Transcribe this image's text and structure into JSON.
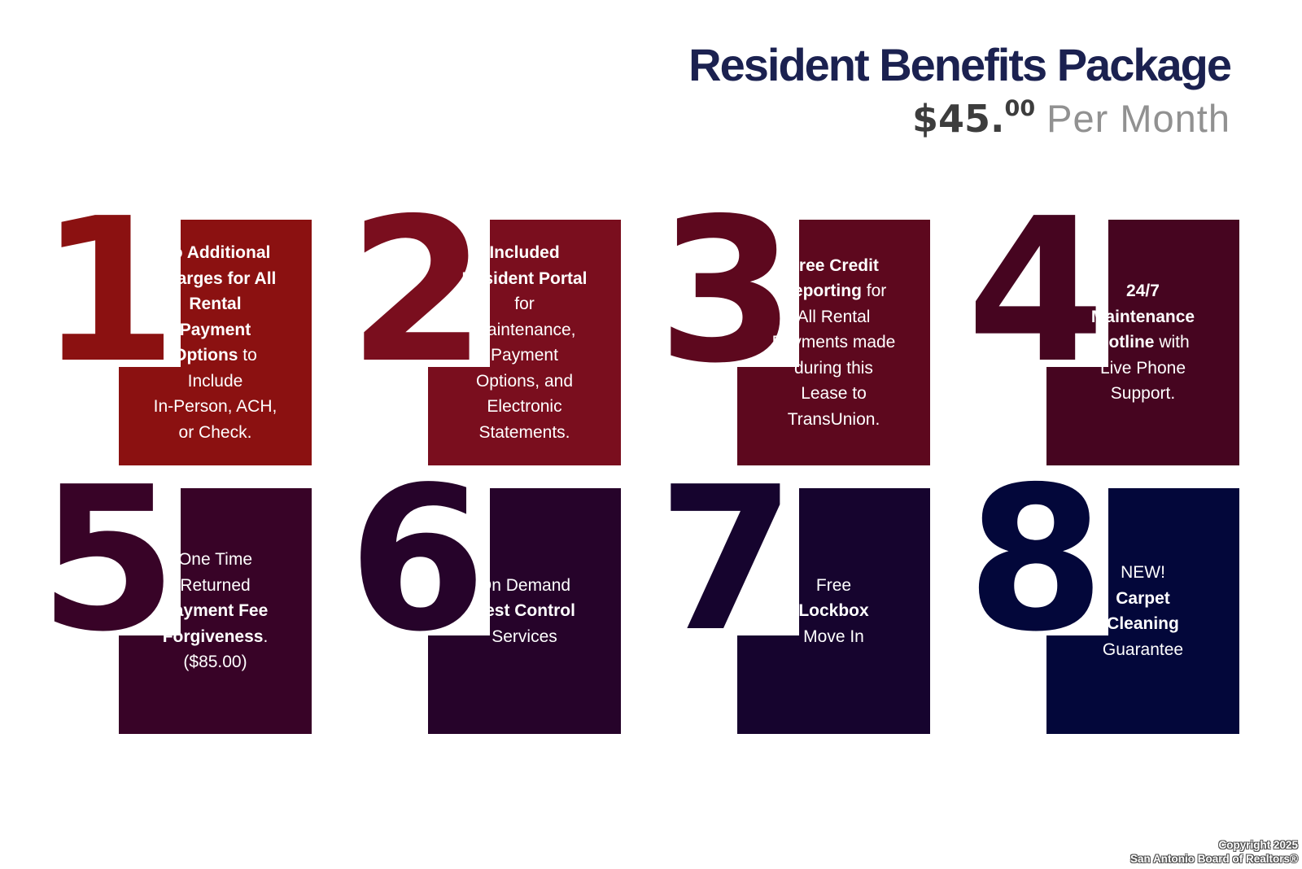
{
  "header": {
    "title": "Resident Benefits Package",
    "price_amount": "$45.",
    "price_cents": "00",
    "price_suffix": " Per Month"
  },
  "cards": [
    {
      "number": "1",
      "color": "#8b1111",
      "segments": [
        {
          "t": "No Additional\nCharges for All\nRental\nPayment\nOptions",
          "b": true
        },
        {
          "t": " to\nInclude\nIn-Person, ACH,\nor Check.",
          "b": false
        }
      ]
    },
    {
      "number": "2",
      "color": "#7a0e1e",
      "segments": [
        {
          "t": "Included\nResident Portal",
          "b": true
        },
        {
          "t": "\nfor\nMaintenance,\nPayment\nOptions, and\nElectronic\nStatements.",
          "b": false
        }
      ]
    },
    {
      "number": "3",
      "color": "#5d081e",
      "segments": [
        {
          "t": "Free Credit\nReporting",
          "b": true
        },
        {
          "t": " for\nAll Rental\nPayments made\nduring this\nLease to\nTransUnion.",
          "b": false
        }
      ]
    },
    {
      "number": "4",
      "color": "#460520",
      "segments": [
        {
          "t": "24/7\nMaintenance\nHotline",
          "b": true
        },
        {
          "t": " with\nLive Phone\nSupport.",
          "b": false
        }
      ]
    },
    {
      "number": "5",
      "color": "#380327",
      "segments": [
        {
          "t": "One Time\nReturned\n",
          "b": false
        },
        {
          "t": "Payment Fee\nForgiveness",
          "b": true
        },
        {
          "t": ".\n($85.00)",
          "b": false
        }
      ]
    },
    {
      "number": "6",
      "color": "#26032a",
      "segments": [
        {
          "t": "On Demand\n",
          "b": false
        },
        {
          "t": "Pest Control",
          "b": true
        },
        {
          "t": "\nServices",
          "b": false
        }
      ]
    },
    {
      "number": "7",
      "color": "#16042e",
      "segments": [
        {
          "t": "Free\n",
          "b": false
        },
        {
          "t": "Lockbox",
          "b": true
        },
        {
          "t": "\nMove In",
          "b": false
        }
      ]
    },
    {
      "number": "8",
      "color": "#03073a",
      "segments": [
        {
          "t": "NEW!\n",
          "b": false
        },
        {
          "t": "Carpet\nCleaning",
          "b": true
        },
        {
          "t": "\nGuarantee",
          "b": false
        }
      ]
    }
  ],
  "footer": {
    "line1": "Copyright 2025",
    "line2": "San Antonio Board of Realtors®"
  }
}
